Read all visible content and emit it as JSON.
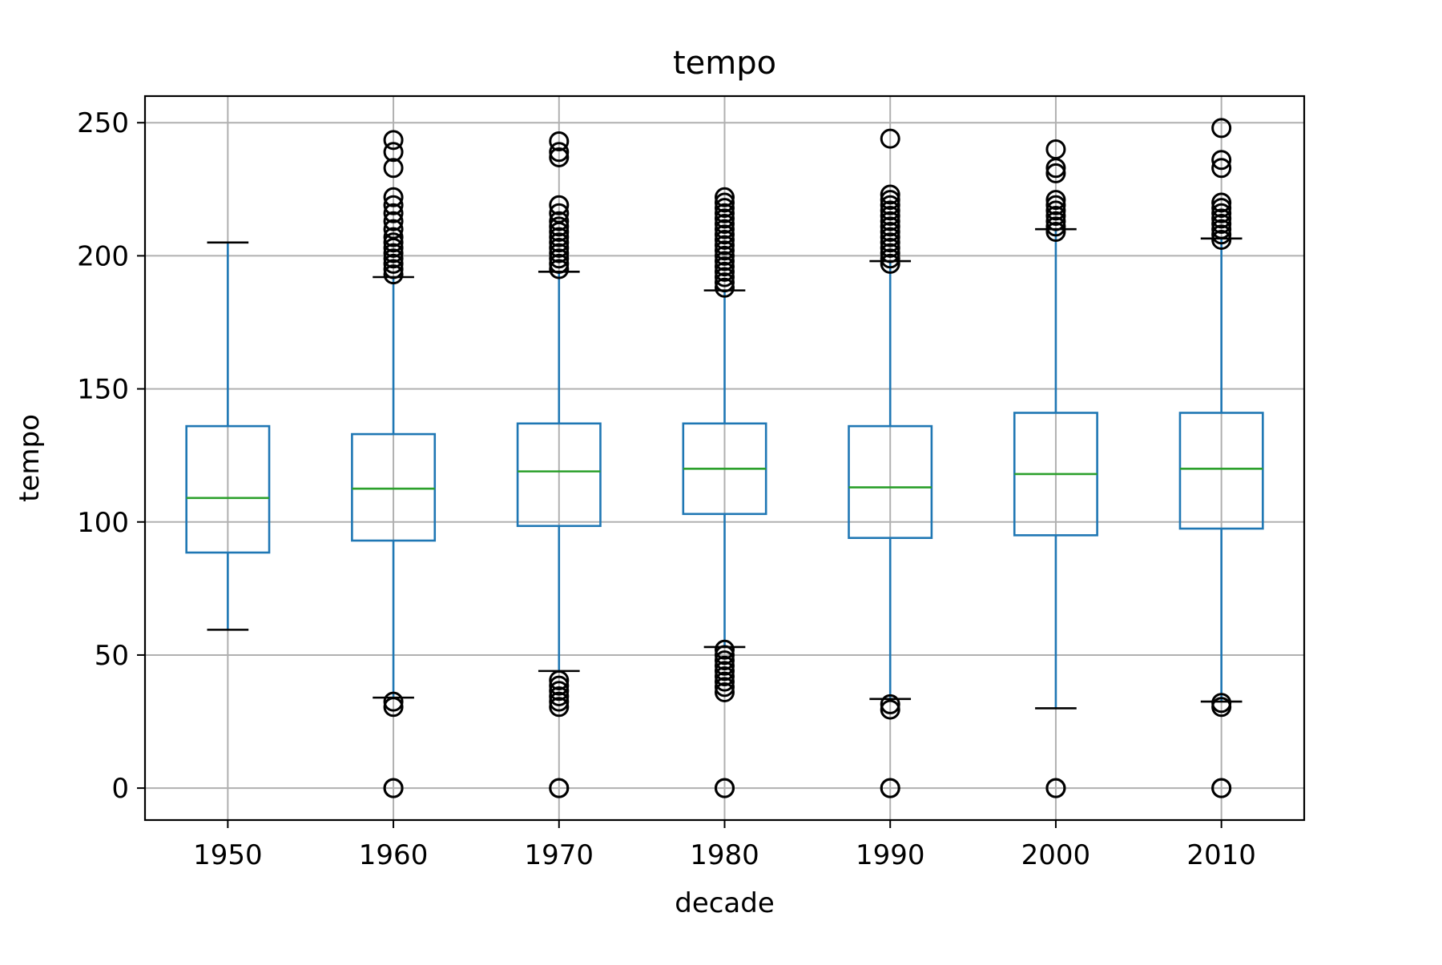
{
  "chart_data": {
    "type": "box",
    "title": "tempo",
    "xlabel": "decade",
    "ylabel": "tempo",
    "ylim": [
      -12,
      260
    ],
    "yticks": [
      0,
      50,
      100,
      150,
      200,
      250
    ],
    "grid": true,
    "categories": [
      "1950",
      "1960",
      "1970",
      "1980",
      "1990",
      "2000",
      "2010"
    ],
    "boxes": [
      {
        "label": "1950",
        "whislo": 59.5,
        "q1": 88.5,
        "med": 109,
        "q3": 136,
        "whishi": 205,
        "fliers": []
      },
      {
        "label": "1960",
        "whislo": 34,
        "q1": 93,
        "med": 112.5,
        "q3": 133,
        "whishi": 192,
        "fliers": [
          0,
          0,
          30.5,
          32.5,
          193,
          195,
          197,
          199,
          201,
          203,
          205,
          207,
          210,
          213,
          216,
          219,
          222,
          233,
          239,
          243.5
        ]
      },
      {
        "label": "1970",
        "whislo": 44,
        "q1": 98.5,
        "med": 119,
        "q3": 137,
        "whishi": 194,
        "fliers": [
          0,
          0,
          30.5,
          32.5,
          34.5,
          36.5,
          38.5,
          40.5,
          195,
          197,
          199,
          201,
          203,
          205,
          207,
          209,
          211,
          213,
          216,
          219,
          237,
          239,
          243
        ]
      },
      {
        "label": "1980",
        "whislo": 53,
        "q1": 103,
        "med": 120,
        "q3": 137,
        "whishi": 187,
        "fliers": [
          0,
          0,
          36,
          38,
          40,
          42,
          44,
          46,
          48,
          50,
          52,
          188,
          190,
          192,
          194,
          196,
          198,
          200,
          202,
          204,
          206,
          208,
          210,
          212,
          214,
          216,
          218,
          220,
          222
        ]
      },
      {
        "label": "1990",
        "whislo": 33.5,
        "q1": 94,
        "med": 113,
        "q3": 136,
        "whishi": 198,
        "fliers": [
          0,
          0,
          29.5,
          31.5,
          197,
          199,
          201,
          203,
          205,
          207,
          209,
          211,
          213,
          215,
          217,
          219,
          221,
          223,
          244
        ]
      },
      {
        "label": "2000",
        "whislo": 30,
        "q1": 95,
        "med": 118,
        "q3": 141,
        "whishi": 210,
        "fliers": [
          0,
          0,
          209,
          211,
          213,
          215,
          217,
          219,
          221,
          231,
          233,
          240
        ]
      },
      {
        "label": "2010",
        "whislo": 32.5,
        "q1": 97.5,
        "med": 120,
        "q3": 141,
        "whishi": 206.5,
        "fliers": [
          0,
          0,
          30.5,
          32,
          206,
          208,
          210,
          212,
          214,
          216,
          218,
          220,
          233,
          236,
          248
        ]
      }
    ],
    "colors": {
      "box": "#1f77b4",
      "median": "#2ca02c",
      "cap": "#000000",
      "flier": "#000000",
      "grid": "#b0b0b0",
      "axes": "#000000"
    }
  }
}
